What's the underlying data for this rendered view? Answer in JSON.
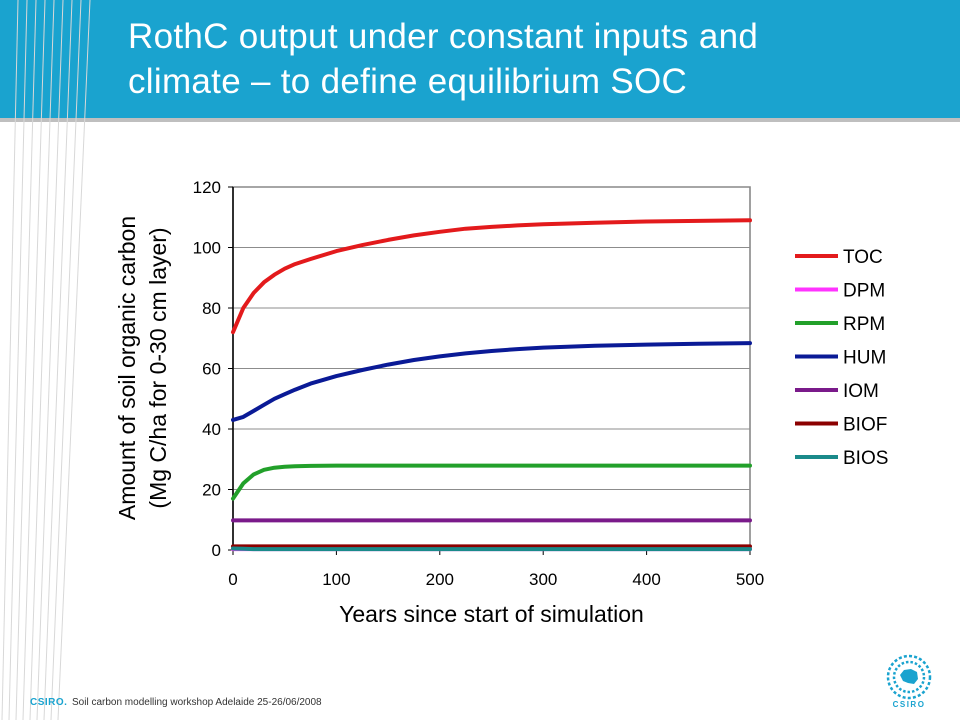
{
  "slide": {
    "title_line1": "RothC output under constant inputs and",
    "title_line2": "climate – to define equilibrium SOC",
    "footer_brand": "CSIRO.",
    "footer_text": "Soil carbon modelling workshop Adelaide 25-26/06/2008",
    "logo_text": "CSIRO",
    "accent_color": "#1aa3cf"
  },
  "chart_data": {
    "type": "line",
    "title": "",
    "xlabel": "Years since start of simulation",
    "ylabel_line1": "Amount of soil organic carbon",
    "ylabel_line2": "(Mg C/ha for 0-30 cm layer)",
    "xlim": [
      0,
      500
    ],
    "ylim": [
      0,
      120
    ],
    "xticks": [
      0,
      100,
      200,
      300,
      400,
      500
    ],
    "yticks": [
      0,
      20,
      40,
      60,
      80,
      100,
      120
    ],
    "grid": "horizontal",
    "legend_position": "right",
    "x": [
      0,
      10,
      20,
      30,
      40,
      50,
      60,
      75,
      100,
      125,
      150,
      175,
      200,
      225,
      250,
      275,
      300,
      350,
      400,
      450,
      500
    ],
    "series": [
      {
        "name": "TOC",
        "color": "#e31a1c",
        "values": [
          72,
          80,
          85,
          88.5,
          91,
          93,
          94.5,
          96.2,
          98.8,
          100.8,
          102.5,
          104,
          105.2,
          106.2,
          106.8,
          107.3,
          107.7,
          108.2,
          108.6,
          108.8,
          109
        ]
      },
      {
        "name": "DPM",
        "color": "#ff33ff",
        "values": [
          0.3,
          0.3,
          0.3,
          0.3,
          0.3,
          0.3,
          0.3,
          0.3,
          0.3,
          0.3,
          0.3,
          0.3,
          0.3,
          0.3,
          0.3,
          0.3,
          0.3,
          0.3,
          0.3,
          0.3,
          0.3
        ]
      },
      {
        "name": "RPM",
        "color": "#22a02a",
        "values": [
          17,
          22,
          25,
          26.5,
          27.2,
          27.5,
          27.7,
          27.8,
          27.9,
          27.9,
          27.9,
          27.9,
          27.9,
          27.9,
          27.9,
          27.9,
          27.9,
          27.9,
          27.9,
          27.9,
          27.9
        ]
      },
      {
        "name": "HUM",
        "color": "#0a1a96",
        "values": [
          43,
          44,
          46,
          48,
          50,
          51.5,
          53,
          55,
          57.5,
          59.5,
          61.3,
          62.8,
          64,
          65,
          65.8,
          66.4,
          66.9,
          67.5,
          67.9,
          68.2,
          68.4
        ]
      },
      {
        "name": "IOM",
        "color": "#7a1a8a",
        "values": [
          9.8,
          9.8,
          9.8,
          9.8,
          9.8,
          9.8,
          9.8,
          9.8,
          9.8,
          9.8,
          9.8,
          9.8,
          9.8,
          9.8,
          9.8,
          9.8,
          9.8,
          9.8,
          9.8,
          9.8,
          9.8
        ]
      },
      {
        "name": "BIOF",
        "color": "#8b0000",
        "values": [
          1.2,
          1.2,
          1.2,
          1.2,
          1.2,
          1.2,
          1.2,
          1.2,
          1.2,
          1.2,
          1.2,
          1.2,
          1.2,
          1.2,
          1.2,
          1.2,
          1.2,
          1.2,
          1.2,
          1.2,
          1.2
        ]
      },
      {
        "name": "BIOS",
        "color": "#1a8a8a",
        "values": [
          0.5,
          0.4,
          0.3,
          0.3,
          0.3,
          0.3,
          0.3,
          0.3,
          0.3,
          0.3,
          0.3,
          0.3,
          0.3,
          0.3,
          0.3,
          0.3,
          0.3,
          0.3,
          0.3,
          0.3,
          0.3
        ]
      }
    ]
  }
}
